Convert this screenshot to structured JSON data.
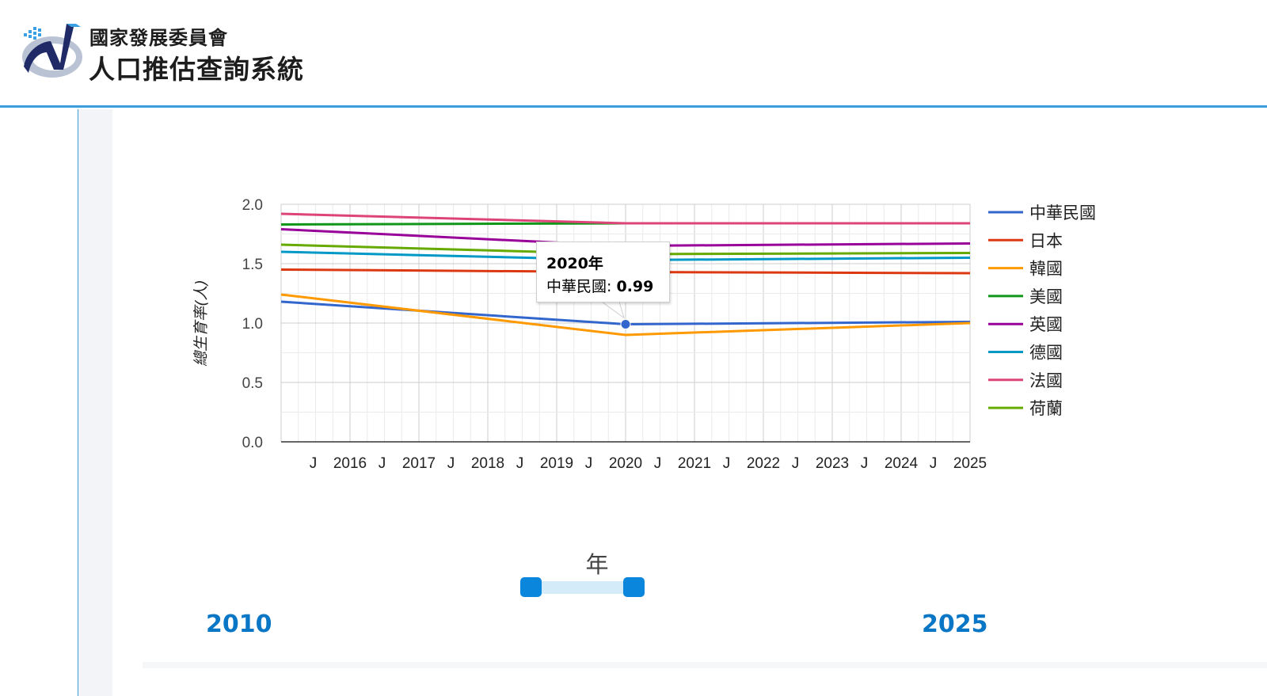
{
  "header": {
    "org_name": "國家發展委員會",
    "app_name": "人口推估查詢系統"
  },
  "colors": {
    "accent": "#3b9ddb",
    "slider": "#0a86dc",
    "year_text": "#0a76c6",
    "logo_dark": "#1f2a66",
    "logo_light": "#3aa0e3"
  },
  "chart_data": {
    "type": "line",
    "xlabel": "",
    "ylabel": "總生育率(人)",
    "ylim": [
      0,
      2.0
    ],
    "xlim": [
      2015.0,
      2025.0
    ],
    "yticks": [
      "0.0",
      "0.5",
      "1.0",
      "1.5",
      "2.0"
    ],
    "xtick_labels": [
      "J",
      "2016",
      "J",
      "2017",
      "J",
      "2018",
      "J",
      "2019",
      "J",
      "2020",
      "J",
      "2021",
      "J",
      "2022",
      "J",
      "2023",
      "J",
      "2024",
      "J",
      "2025"
    ],
    "grid": true,
    "legend": "right",
    "x": [
      2015,
      2020,
      2025
    ],
    "series": [
      {
        "name": "中華民國",
        "color": "#3366cc",
        "values": [
          1.18,
          0.99,
          1.01
        ]
      },
      {
        "name": "日本",
        "color": "#dc3912",
        "values": [
          1.45,
          1.43,
          1.42
        ]
      },
      {
        "name": "韓國",
        "color": "#ff9900",
        "values": [
          1.24,
          0.9,
          1.0
        ]
      },
      {
        "name": "美國",
        "color": "#109618",
        "values": [
          1.83,
          1.84,
          1.84
        ]
      },
      {
        "name": "英國",
        "color": "#990099",
        "values": [
          1.79,
          1.65,
          1.67
        ]
      },
      {
        "name": "德國",
        "color": "#0099c6",
        "values": [
          1.6,
          1.53,
          1.55
        ]
      },
      {
        "name": "法國",
        "color": "#dd4477",
        "values": [
          1.92,
          1.84,
          1.84
        ]
      },
      {
        "name": "荷蘭",
        "color": "#66aa00",
        "values": [
          1.66,
          1.58,
          1.59
        ]
      }
    ],
    "tooltip": {
      "title": "2020年",
      "series": "中華民國",
      "value": "0.99"
    }
  },
  "slider": {
    "label": "年",
    "min_label": "2010",
    "max_label": "2025"
  }
}
